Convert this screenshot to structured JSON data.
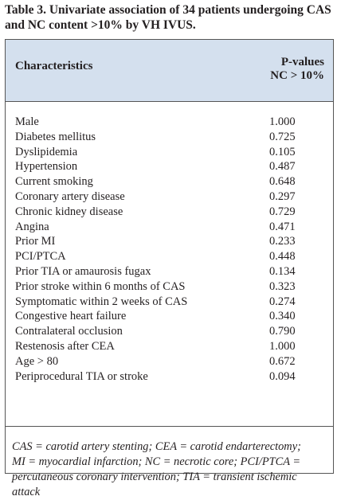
{
  "caption": {
    "line1": "Table 3. Univariate association of 34 patients undergoing CAS",
    "line2": "and NC content >10% by VH IVUS."
  },
  "header": {
    "characteristics": "Characteristics",
    "pvalues_line1": "P-values",
    "pvalues_line2": "NC > 10%"
  },
  "rows": [
    {
      "label": "Male",
      "value": "1.000"
    },
    {
      "label": "Diabetes mellitus",
      "value": "0.725"
    },
    {
      "label": "Dyslipidemia",
      "value": "0.105"
    },
    {
      "label": "Hypertension",
      "value": "0.487"
    },
    {
      "label": "Current smoking",
      "value": "0.648"
    },
    {
      "label": "Coronary artery disease",
      "value": "0.297"
    },
    {
      "label": "Chronic kidney disease",
      "value": "0.729"
    },
    {
      "label": "Angina",
      "value": "0.471"
    },
    {
      "label": "Prior MI",
      "value": "0.233"
    },
    {
      "label": "PCI/PTCA",
      "value": "0.448"
    },
    {
      "label": "Prior TIA or amaurosis fugax",
      "value": "0.134"
    },
    {
      "label": "Prior stroke within 6 months of CAS",
      "value": "0.323"
    },
    {
      "label": "Symptomatic within 2 weeks of CAS",
      "value": "0.274"
    },
    {
      "label": "Congestive heart failure",
      "value": "0.340"
    },
    {
      "label": "Contralateral occlusion",
      "value": "0.790"
    },
    {
      "label": "Restenosis after CEA",
      "value": "1.000"
    },
    {
      "label": "Age > 80",
      "value": "0.672"
    },
    {
      "label": "Periprocedural TIA or stroke",
      "value": "0.094"
    }
  ],
  "footnote": {
    "line1": "CAS = carotid artery stenting; CEA = carotid endarterectomy;",
    "line2": "MI = myocardial infarction; NC = necrotic core; PCI/PTCA =",
    "line3": "percutaneous coronary intervention; TIA = transient ischemic",
    "line4": "attack"
  },
  "colors": {
    "header_bg": "#d4e0ee",
    "text": "#231f20",
    "border": "#555555"
  }
}
